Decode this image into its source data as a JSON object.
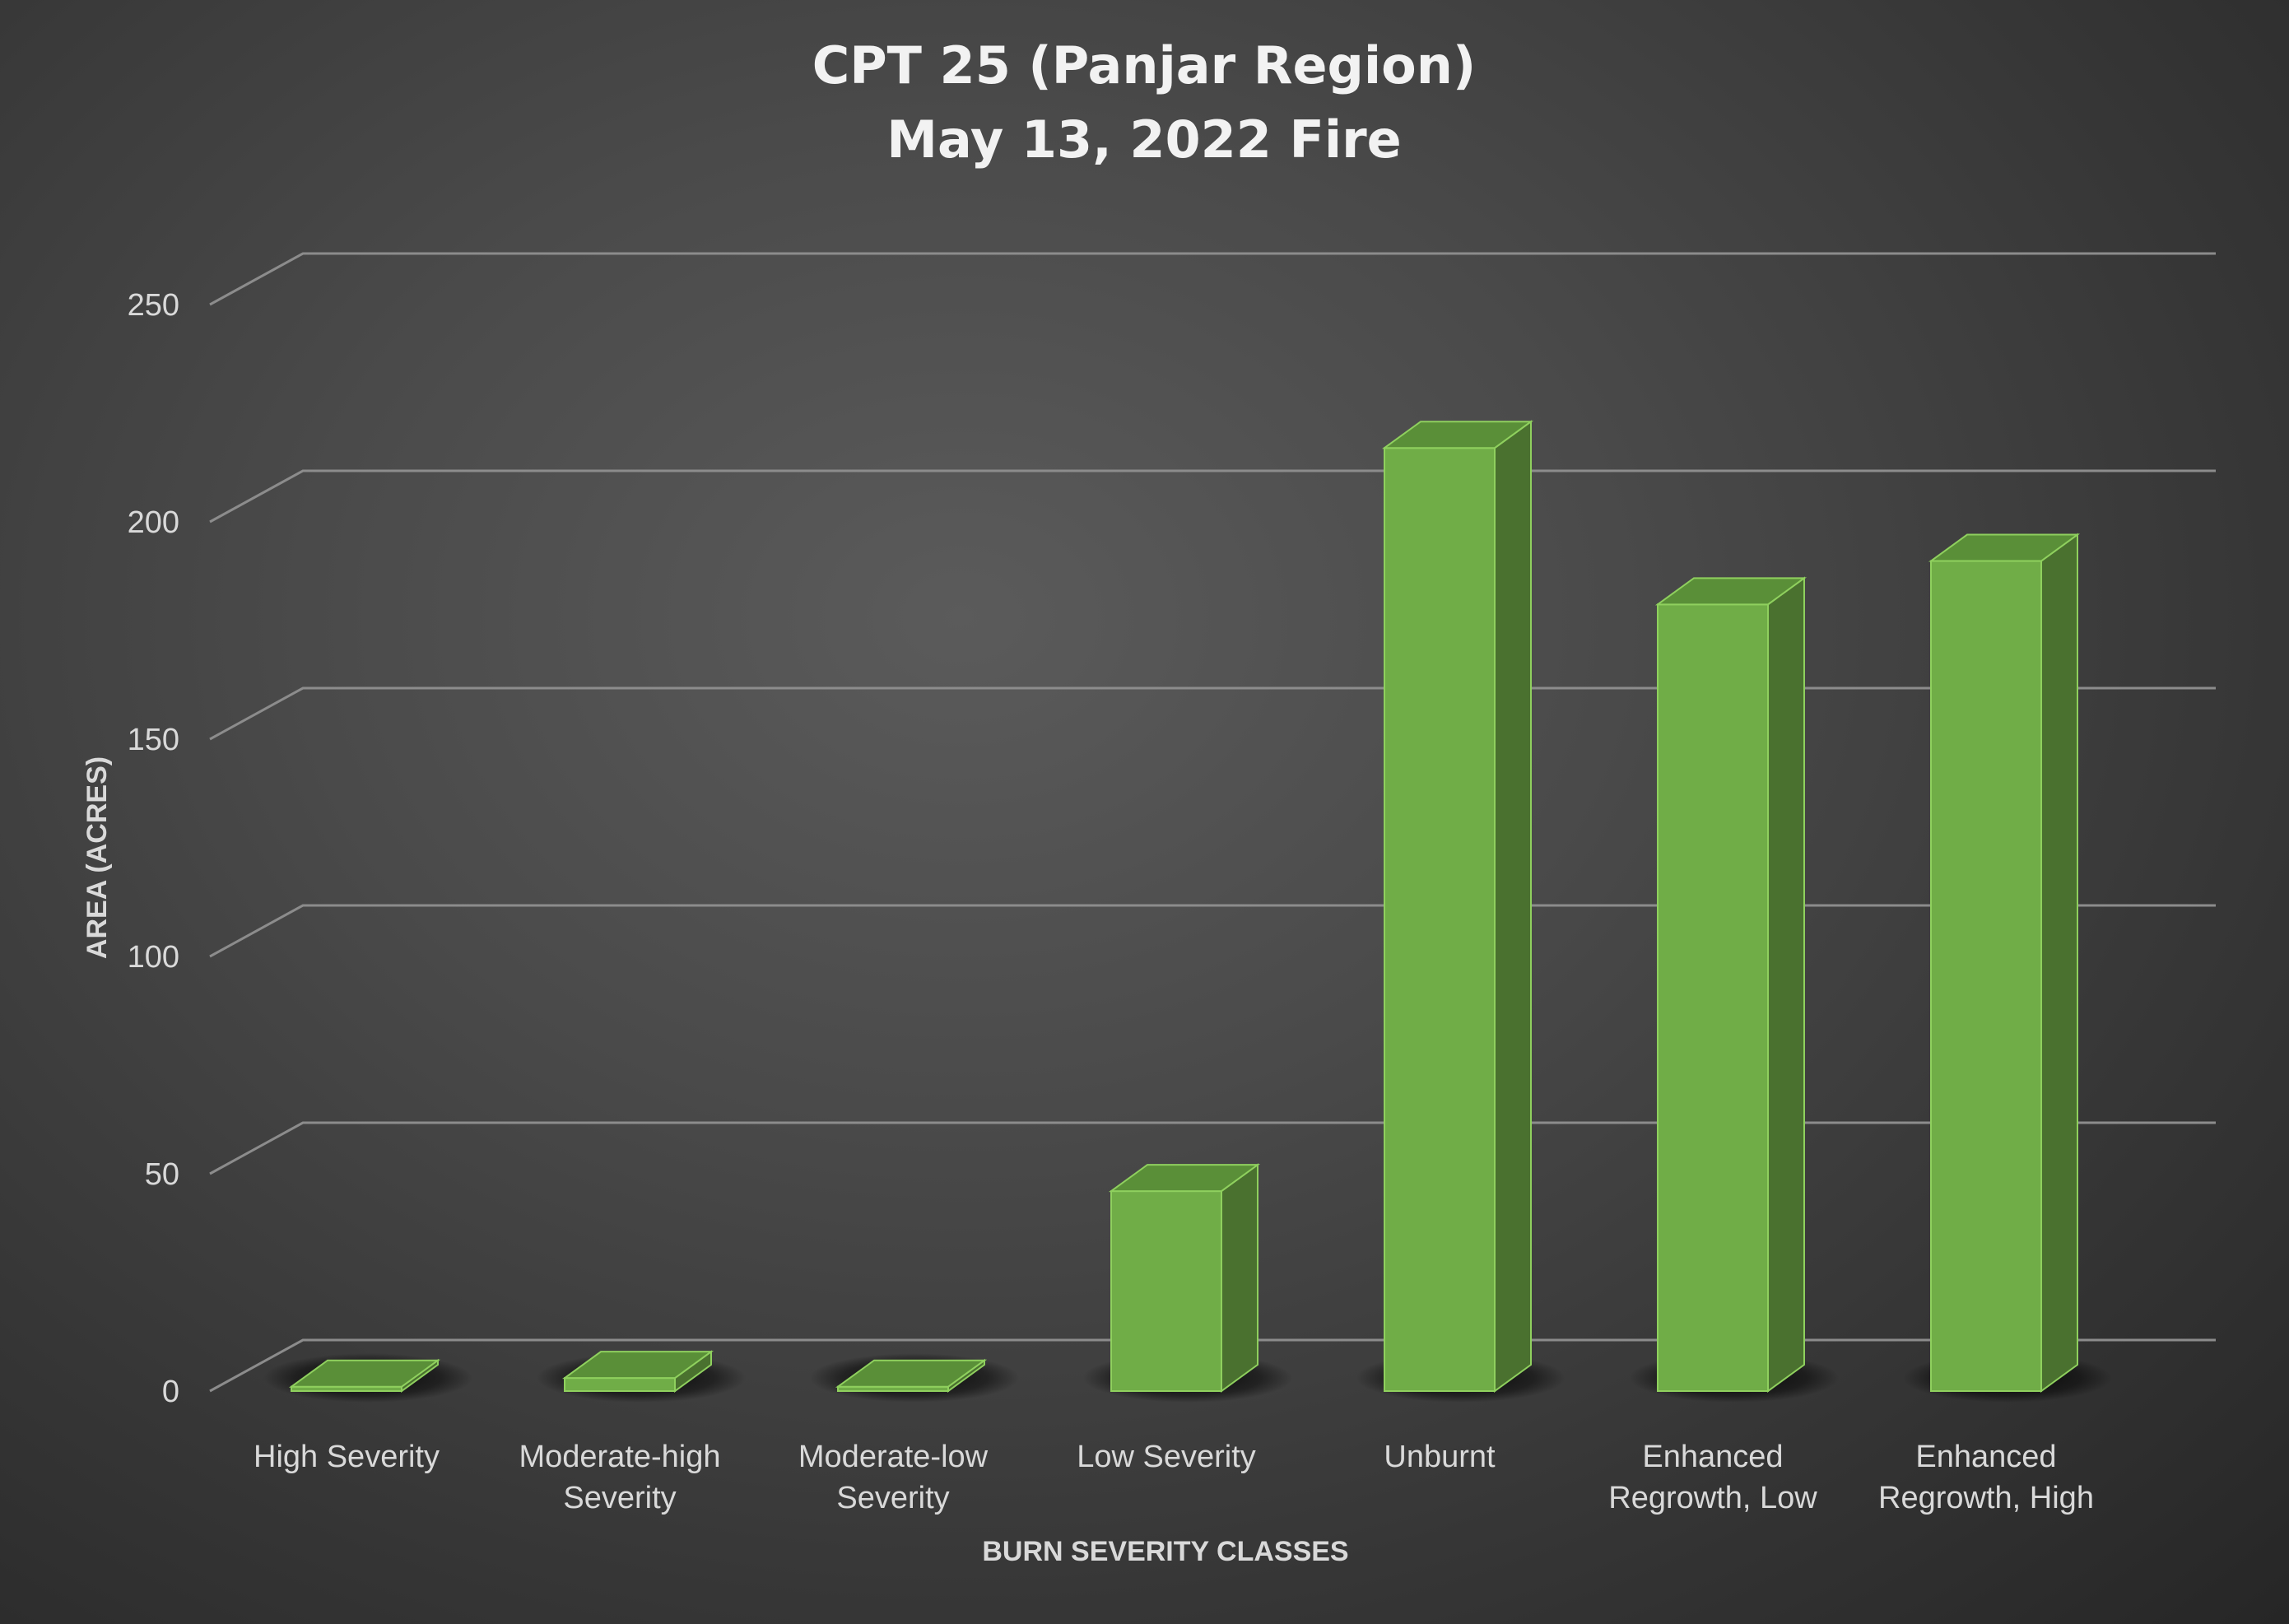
{
  "chart_data": {
    "type": "bar",
    "title_lines": [
      "CPT 25 (Panjar Region)",
      "May 13, 2022 Fire"
    ],
    "xlabel": "BURN SEVERITY CLASSES",
    "ylabel": "AREA (ACRES)",
    "ylim": [
      0,
      250
    ],
    "yticks": [
      0,
      50,
      100,
      150,
      200,
      250
    ],
    "grid": true,
    "categories": [
      [
        "High Severity"
      ],
      [
        "Moderate-high",
        "Severity"
      ],
      [
        "Moderate-low",
        "Severity"
      ],
      [
        "Low Severity"
      ],
      [
        "Unburnt"
      ],
      [
        "Enhanced",
        "Regrowth, Low"
      ],
      [
        "Enhanced",
        "Regrowth, High"
      ]
    ],
    "values": [
      1,
      3,
      1,
      46,
      217,
      181,
      191
    ],
    "colors": {
      "bar_front": "#70ad47",
      "bar_top": "#5a8f38",
      "bar_side": "#4a712f",
      "bar_edge": "#8fd05e"
    }
  }
}
